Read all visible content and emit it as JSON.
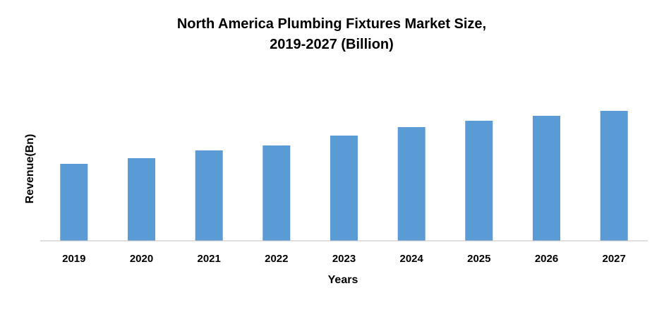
{
  "chart_data": {
    "type": "bar",
    "title_lines": [
      "North America Plumbing Fixtures Market Size,",
      "2019-2027 (Billion)"
    ],
    "xlabel": "Years",
    "ylabel": "Revenue(Bn)",
    "categories": [
      "2019",
      "2020",
      "2021",
      "2022",
      "2023",
      "2024",
      "2025",
      "2026",
      "2027"
    ],
    "values": [
      109,
      117,
      128,
      135,
      149,
      161,
      170,
      177,
      184
    ],
    "ylim": [
      0,
      240
    ],
    "grid": false,
    "legend": "none",
    "bar_color": "#5B9BD5",
    "axis_color": "#BFBFBF"
  }
}
